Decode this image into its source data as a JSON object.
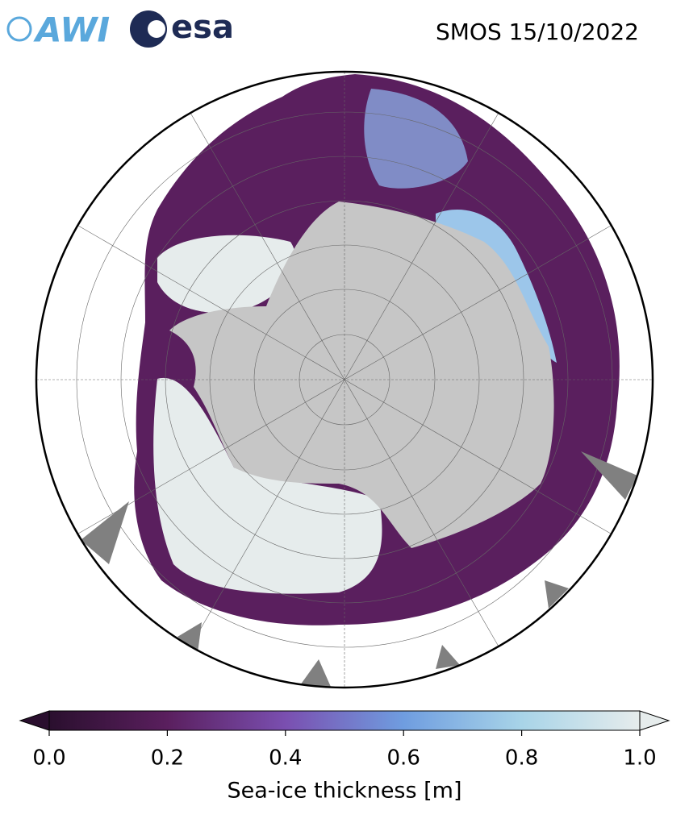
{
  "header": {
    "logos": [
      "AWI",
      "esa"
    ],
    "title": "SMOS 15/10/2022"
  },
  "colorbar": {
    "label": "Sea-ice thickness [m]",
    "lim": [
      0,
      1
    ],
    "ticks": [
      {
        "value": 0,
        "label": "0.0"
      },
      0.2,
      0.4,
      0.6,
      0.8,
      {
        "value": 1,
        "label": "1.0"
      }
    ],
    "colors": [
      "#2a0f2e",
      "#5a1f5e",
      "#7a4fb0",
      "#6f9de0",
      "#a8d4e8",
      "#e6ecec"
    ]
  }
}
